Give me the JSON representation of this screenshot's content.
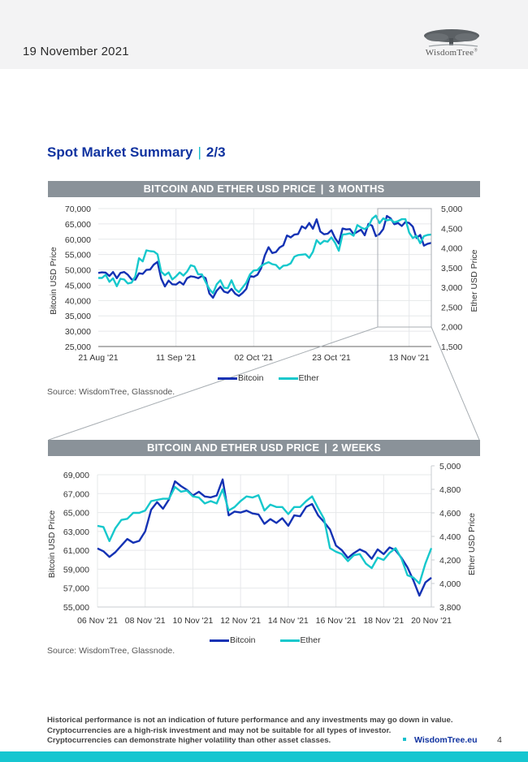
{
  "header": {
    "date": "19 November 2021",
    "logo_text": "WisdomTree",
    "logo_mark": "®"
  },
  "section": {
    "title": "Spot Market Summary",
    "separator": "|",
    "page_of": "2/3"
  },
  "colors": {
    "bitcoin": "#1432b4",
    "ether": "#16c8cc",
    "grid": "#e6e8ea",
    "header_bar": "#8a9299",
    "brand_blue": "#1033a0",
    "teal": "#16c6d0"
  },
  "chart_data": [
    {
      "type": "line",
      "title": "BITCOIN AND ETHER USD PRICE",
      "title_suffix": "3 MONTHS",
      "title_sep": "|",
      "xlabel": "",
      "ylabel": "Bitcoin USD Price",
      "y2label": "Ether USD Price",
      "ylim": [
        25000,
        70000
      ],
      "y2lim": [
        1500,
        5000
      ],
      "yticks": [
        "70,000",
        "65,000",
        "60,000",
        "55,000",
        "50,000",
        "45,000",
        "40,000",
        "35,000",
        "30,000",
        "25,000"
      ],
      "yticks_values": [
        70000,
        65000,
        60000,
        55000,
        50000,
        45000,
        40000,
        35000,
        30000,
        25000
      ],
      "y2ticks": [
        "5,000",
        "4,500",
        "4,000",
        "3,500",
        "3,000",
        "2,500",
        "2,000",
        "1,500"
      ],
      "y2ticks_values": [
        5000,
        4500,
        4000,
        3500,
        3000,
        2500,
        2000,
        1500
      ],
      "xticks": [
        "21 Aug '21",
        "11 Sep '21",
        "02 Oct '21",
        "23 Oct '21",
        "13 Nov '21"
      ],
      "xticks_days": [
        0,
        21,
        42,
        63,
        84
      ],
      "xlim_days": [
        0,
        90
      ],
      "grid": true,
      "legend": "bottom",
      "series": [
        {
          "name": "Bitcoin",
          "axis": "left",
          "x_days": [
            0,
            1,
            2,
            3,
            4,
            5,
            6,
            7,
            8,
            9,
            10,
            11,
            12,
            13,
            14,
            15,
            16,
            17,
            18,
            19,
            20,
            21,
            22,
            23,
            24,
            25,
            26,
            27,
            28,
            29,
            30,
            31,
            32,
            33,
            34,
            35,
            36,
            37,
            38,
            39,
            40,
            41,
            42,
            43,
            44,
            45,
            46,
            47,
            48,
            49,
            50,
            51,
            52,
            53,
            54,
            55,
            56,
            57,
            58,
            59,
            60,
            61,
            62,
            63,
            64,
            65,
            66,
            67,
            68,
            69,
            70,
            71,
            72,
            73,
            74,
            75,
            76,
            77,
            78,
            79,
            80,
            81,
            82,
            83,
            84,
            85,
            86,
            87,
            88,
            89,
            90
          ],
          "values": [
            49000,
            49200,
            49100,
            48000,
            49300,
            47300,
            49000,
            49300,
            48400,
            46900,
            46800,
            48900,
            48700,
            50000,
            50100,
            51700,
            52600,
            47200,
            44600,
            46500,
            45300,
            45200,
            46100,
            45200,
            47300,
            47900,
            47700,
            47300,
            48000,
            47300,
            42300,
            40900,
            43200,
            44500,
            42900,
            42500,
            43800,
            42200,
            41500,
            42500,
            43800,
            48000,
            47700,
            48400,
            50500,
            54700,
            57400,
            55500,
            55800,
            57300,
            58000,
            61200,
            60600,
            61500,
            61700,
            64200,
            63500,
            65300,
            63400,
            66500,
            62500,
            61600,
            61800,
            62900,
            60300,
            58600,
            63500,
            63200,
            63300,
            61700,
            62400,
            63100,
            61300,
            65000,
            64400,
            61000,
            61700,
            63300,
            67600,
            66800,
            64900,
            65300,
            64300,
            65600,
            65300,
            64100,
            60400,
            61400,
            57900,
            58500,
            58800
          ]
        },
        {
          "name": "Ether",
          "axis": "right",
          "x_days": [
            0,
            1,
            2,
            3,
            4,
            5,
            6,
            7,
            8,
            9,
            10,
            11,
            12,
            13,
            14,
            15,
            16,
            17,
            18,
            19,
            20,
            21,
            22,
            23,
            24,
            25,
            26,
            27,
            28,
            29,
            30,
            31,
            32,
            33,
            34,
            35,
            36,
            37,
            38,
            39,
            40,
            41,
            42,
            43,
            44,
            45,
            46,
            47,
            48,
            49,
            50,
            51,
            52,
            53,
            54,
            55,
            56,
            57,
            58,
            59,
            60,
            61,
            62,
            63,
            64,
            65,
            66,
            67,
            68,
            69,
            70,
            71,
            72,
            73,
            74,
            75,
            76,
            77,
            78,
            79,
            80,
            81,
            82,
            83,
            84,
            85,
            86,
            87,
            88,
            89,
            90
          ],
          "values": [
            3240,
            3240,
            3320,
            3140,
            3230,
            3030,
            3220,
            3200,
            3100,
            3120,
            3280,
            3740,
            3660,
            3940,
            3920,
            3910,
            3840,
            3400,
            3310,
            3380,
            3200,
            3280,
            3380,
            3300,
            3400,
            3560,
            3530,
            3330,
            3330,
            3140,
            2960,
            2850,
            3080,
            3180,
            2990,
            2980,
            3180,
            2960,
            2880,
            3000,
            3120,
            3330,
            3430,
            3440,
            3540,
            3600,
            3640,
            3590,
            3570,
            3470,
            3550,
            3560,
            3610,
            3780,
            3820,
            3830,
            3840,
            3750,
            3900,
            4200,
            4100,
            4180,
            4160,
            4270,
            4130,
            3930,
            4340,
            4350,
            4370,
            4310,
            4580,
            4520,
            4480,
            4550,
            4740,
            4820,
            4630,
            4750,
            4700,
            4720,
            4650,
            4680,
            4730,
            4730,
            4390,
            4250,
            4310,
            4120,
            4300,
            4330,
            4340
          ]
        }
      ]
    },
    {
      "type": "line",
      "title": "BITCOIN AND ETHER USD PRICE",
      "title_suffix": "2 WEEKS",
      "title_sep": "|",
      "xlabel": "",
      "ylabel": "Bitcoin USD Price",
      "y2label": "Ether USD Price",
      "ylim": [
        55000,
        70200
      ],
      "y2lim": [
        3800,
        5000
      ],
      "yticks": [
        "69,000",
        "67,000",
        "65,000",
        "63,000",
        "61,000",
        "59,000",
        "57,000",
        "55,000"
      ],
      "yticks_values": [
        69000,
        67000,
        65000,
        63000,
        61000,
        59000,
        57000,
        55000
      ],
      "y2ticks": [
        "5,000",
        "4,800",
        "4,600",
        "4,400",
        "4,200",
        "4,000",
        "3,800"
      ],
      "y2ticks_values": [
        5000,
        4800,
        4600,
        4400,
        4200,
        4000,
        3800
      ],
      "xticks": [
        "06 Nov '21",
        "08 Nov '21",
        "10 Nov '21",
        "12 Nov '21",
        "14 Nov '21",
        "16 Nov '21",
        "18 Nov '21",
        "20 Nov '21"
      ],
      "xticks_days": [
        0,
        2,
        4,
        6,
        8,
        10,
        12,
        14
      ],
      "xlim_days": [
        0,
        14
      ],
      "grid": true,
      "legend": "bottom",
      "series": [
        {
          "name": "Bitcoin",
          "axis": "left",
          "x_days": [
            0,
            0.25,
            0.5,
            0.75,
            1,
            1.25,
            1.5,
            1.75,
            2,
            2.25,
            2.5,
            2.75,
            3,
            3.25,
            3.5,
            3.75,
            4,
            4.25,
            4.5,
            4.75,
            5,
            5.25,
            5.5,
            5.75,
            6,
            6.25,
            6.5,
            6.75,
            7,
            7.25,
            7.5,
            7.75,
            8,
            8.25,
            8.5,
            8.75,
            9,
            9.25,
            9.5,
            9.75,
            10,
            10.25,
            10.5,
            10.75,
            11,
            11.25,
            11.5,
            11.75,
            12,
            12.25,
            12.5,
            12.75,
            13,
            13.25,
            13.5,
            13.75,
            14
          ],
          "values": [
            61200,
            60900,
            60300,
            60800,
            61500,
            62200,
            61800,
            62000,
            63000,
            65300,
            66100,
            65400,
            66400,
            68300,
            67800,
            67400,
            66800,
            67200,
            66700,
            66600,
            66800,
            68500,
            64700,
            65100,
            65000,
            65200,
            64900,
            64800,
            63800,
            64300,
            63900,
            64400,
            63600,
            64700,
            64600,
            65600,
            65900,
            64700,
            64000,
            63200,
            61500,
            61000,
            60200,
            60700,
            61100,
            60800,
            60100,
            61100,
            60600,
            61300,
            61000,
            60200,
            59200,
            57800,
            56200,
            57600,
            58100
          ]
        },
        {
          "name": "Ether",
          "axis": "right",
          "x_days": [
            0,
            0.25,
            0.5,
            0.75,
            1,
            1.25,
            1.5,
            1.75,
            2,
            2.25,
            2.5,
            2.75,
            3,
            3.25,
            3.5,
            3.75,
            4,
            4.25,
            4.5,
            4.75,
            5,
            5.25,
            5.5,
            5.75,
            6,
            6.25,
            6.5,
            6.75,
            7,
            7.25,
            7.5,
            7.75,
            8,
            8.25,
            8.5,
            8.75,
            9,
            9.25,
            9.5,
            9.75,
            10,
            10.25,
            10.5,
            10.75,
            11,
            11.25,
            11.5,
            11.75,
            12,
            12.25,
            12.5,
            12.75,
            13,
            13.25,
            13.5,
            13.75,
            14
          ],
          "values": [
            4490,
            4480,
            4360,
            4470,
            4540,
            4550,
            4600,
            4600,
            4620,
            4700,
            4710,
            4720,
            4720,
            4820,
            4780,
            4790,
            4740,
            4730,
            4680,
            4700,
            4680,
            4800,
            4620,
            4650,
            4700,
            4740,
            4730,
            4750,
            4620,
            4670,
            4650,
            4650,
            4590,
            4650,
            4650,
            4700,
            4740,
            4640,
            4550,
            4300,
            4270,
            4250,
            4190,
            4240,
            4250,
            4170,
            4130,
            4220,
            4200,
            4260,
            4300,
            4210,
            4070,
            4050,
            4000,
            4170,
            4300
          ]
        }
      ]
    }
  ],
  "sources": [
    "Source: WisdomTree, Glassnode.",
    "Source: WisdomTree, Glassnode."
  ],
  "legend": {
    "bitcoin": "Bitcoin",
    "ether": "Ether"
  },
  "footer": {
    "disclaimer": [
      "Historical performance is not an indication of future performance and any investments may go down in value.",
      "Cryptocurrencies are a high-risk investment and may not be suitable for all types of investor.",
      "Cryptocurrencies can demonstrate higher volatility than other asset classes."
    ],
    "link": "WisdomTree.eu",
    "page_number": "4"
  }
}
